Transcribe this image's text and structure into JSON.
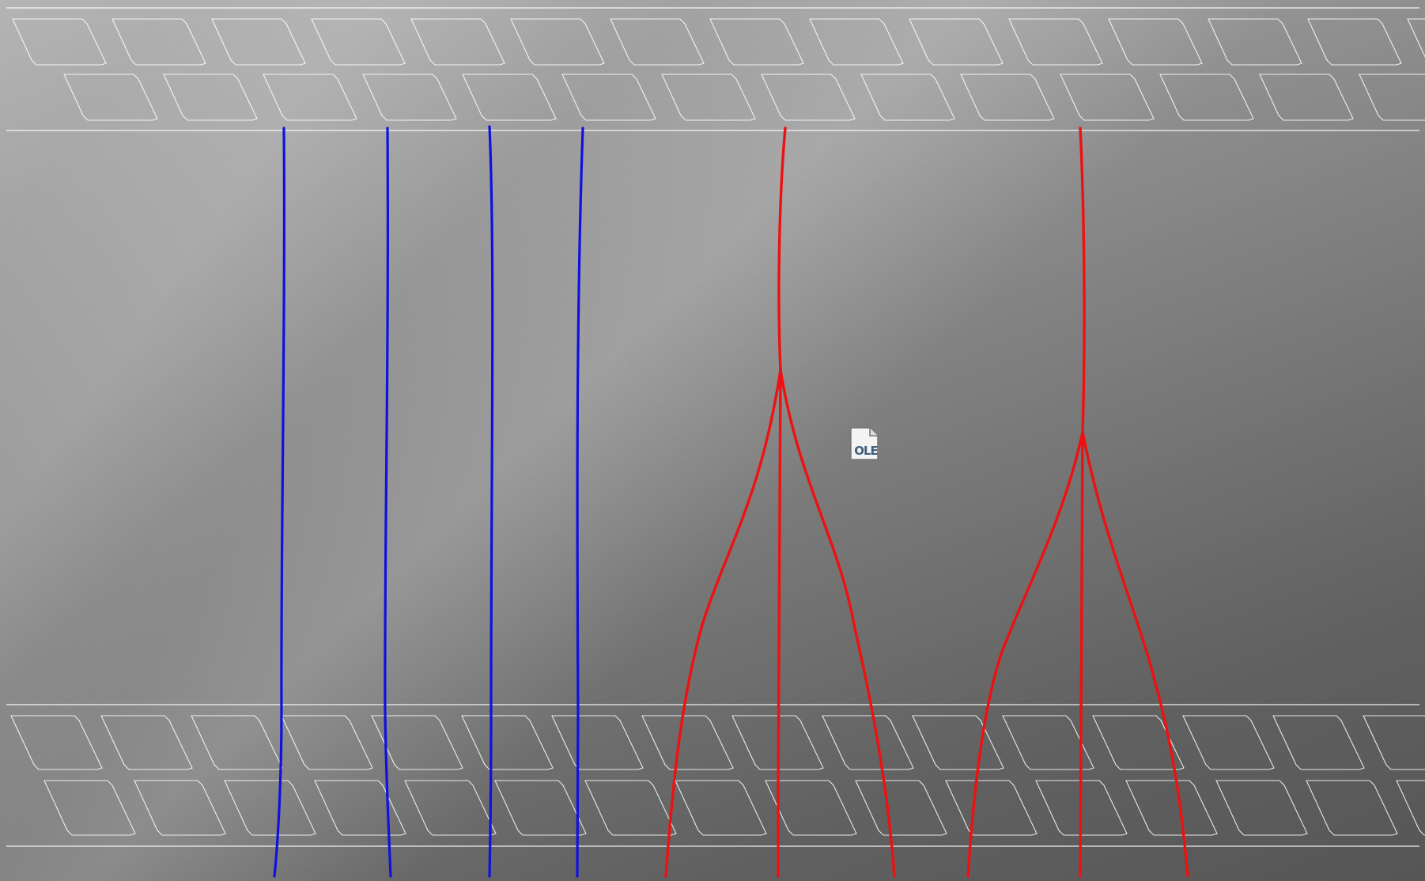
{
  "title": "",
  "colors": {
    "rail": "#ffffff",
    "straight_strand": "#1010e0",
    "branching_strand": "#ee1111"
  },
  "embedded_object": {
    "icon": "embedded-document-icon",
    "label": "OLE"
  }
}
